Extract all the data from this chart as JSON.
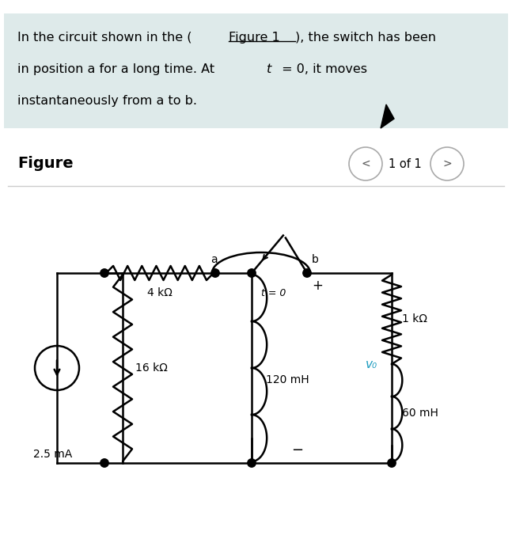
{
  "bg_color": "#deeaea",
  "white_bg": "#ffffff",
  "text_color": "#000000",
  "figure_label": "Figure",
  "page_label": "1 of 1",
  "component_color": "#000000",
  "label_color_cyan": "#1a9bbf",
  "resistor_4k": "4 kΩ",
  "resistor_16k": "16 kΩ",
  "resistor_1k": "1 kΩ",
  "inductor_120": "120 mH",
  "inductor_60": "60 mH",
  "current_source": "2.5 mA",
  "switch_label": "t = 0",
  "v0_label": "v₀",
  "label_a": "a",
  "label_b": "b",
  "plus_sign": "+",
  "minus_sign": "−"
}
